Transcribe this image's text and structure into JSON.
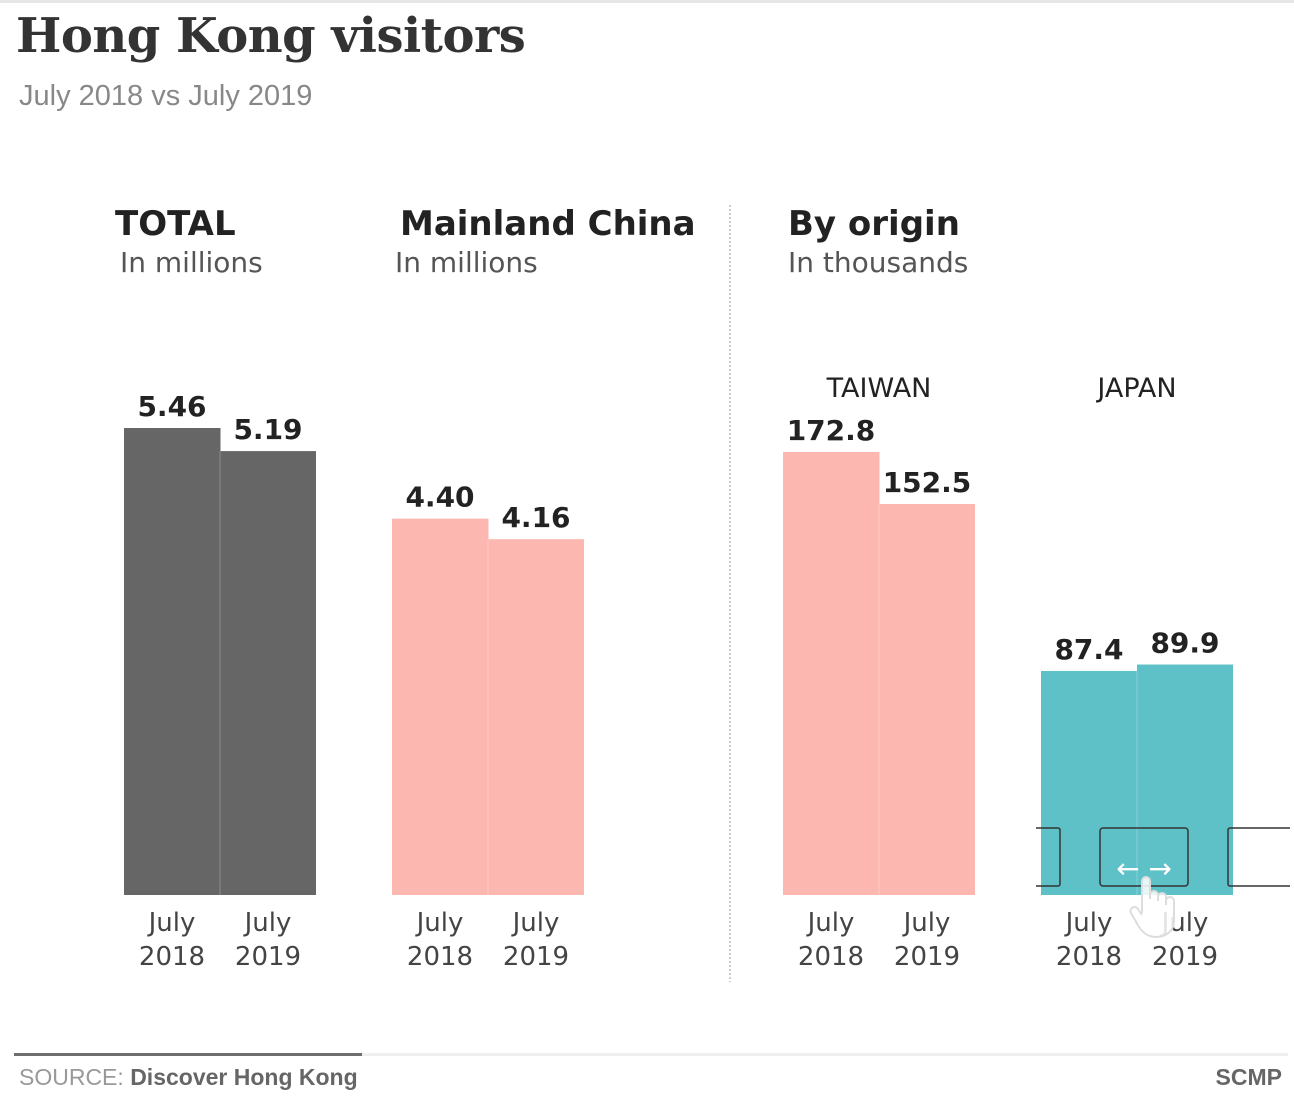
{
  "header": {
    "title": "Hong Kong visitors",
    "subtitle": "July 2018 vs July 2019"
  },
  "footer": {
    "source_prefix": "SOURCE: ",
    "source_name": "Discover Hong Kong",
    "brand": "SCMP"
  },
  "colors": {
    "total": "#666666",
    "mainland": "#fdb7b1",
    "taiwan": "#fdb7b1",
    "japan": "#5dc1c7"
  },
  "chart_data": [
    {
      "type": "bar",
      "title": "TOTAL",
      "subtitle": "In millions",
      "categories": [
        "July 2018",
        "July 2019"
      ],
      "values": [
        5.46,
        5.19
      ],
      "value_labels": [
        "5.46",
        "5.19"
      ],
      "color": "#666666"
    },
    {
      "type": "bar",
      "title": "Mainland China",
      "subtitle": "In millions",
      "categories": [
        "July 2018",
        "July 2019"
      ],
      "values": [
        4.4,
        4.16
      ],
      "value_labels": [
        "4.40",
        "4.16"
      ],
      "color": "#fdb7b1"
    },
    {
      "type": "bar",
      "title": "By origin",
      "subtitle": "In thousands",
      "panels": [
        {
          "label": "TAIWAN",
          "categories": [
            "July 2018",
            "July 2019"
          ],
          "values": [
            172.8,
            152.5
          ],
          "value_labels": [
            "172.8",
            "152.5"
          ],
          "color": "#fdb7b1"
        },
        {
          "label": "JAPAN",
          "categories": [
            "July 2018",
            "July 2019"
          ],
          "values": [
            87.4,
            89.9
          ],
          "value_labels": [
            "87.4",
            "89.9"
          ],
          "color": "#5dc1c7"
        }
      ]
    }
  ],
  "tick_labels": {
    "line1": "July",
    "line2_a": "2018",
    "line2_b": "2019"
  },
  "scroll_hint": {
    "arrows": "← →",
    "icon": "hand-pointer-icon"
  }
}
